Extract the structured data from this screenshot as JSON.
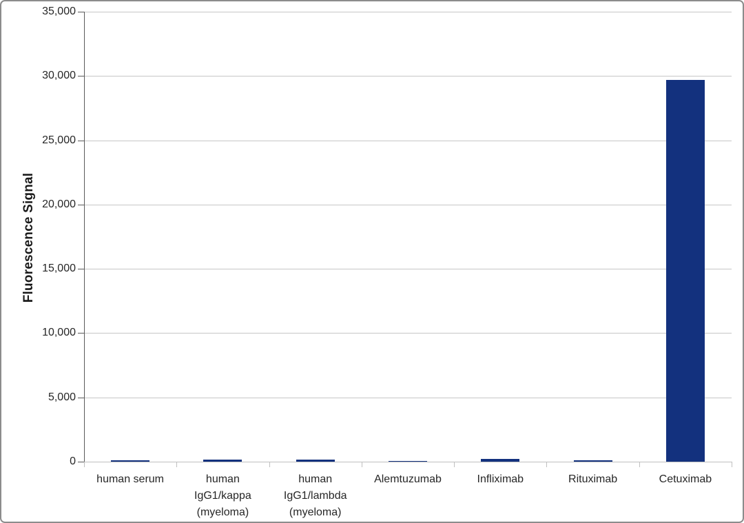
{
  "chart_data": {
    "type": "bar",
    "title": "",
    "xlabel": "",
    "ylabel": "Fluorescence Signal",
    "categories": [
      "human serum",
      "human IgG1/kappa (myeloma)",
      "human IgG1/lambda (myeloma)",
      "Alemtuzumab",
      "Infliximab",
      "Rituximab",
      "Cetuximab"
    ],
    "category_lines": [
      [
        "human serum"
      ],
      [
        "human",
        "IgG1/kappa",
        "(myeloma)"
      ],
      [
        "human",
        "IgG1/lambda",
        "(myeloma)"
      ],
      [
        "Alemtuzumab"
      ],
      [
        "Infliximab"
      ],
      [
        "Rituximab"
      ],
      [
        "Cetuximab"
      ]
    ],
    "values": [
      100,
      170,
      140,
      80,
      200,
      130,
      29700
    ],
    "ylim": [
      0,
      35000
    ],
    "ytick_interval": 5000,
    "yticks": [
      {
        "value": 0,
        "label": "0"
      },
      {
        "value": 5000,
        "label": "5,000"
      },
      {
        "value": 10000,
        "label": "10,000"
      },
      {
        "value": 15000,
        "label": "15,000"
      },
      {
        "value": 20000,
        "label": "20,000"
      },
      {
        "value": 25000,
        "label": "25,000"
      },
      {
        "value": 30000,
        "label": "30,000"
      },
      {
        "value": 35000,
        "label": "35,000"
      }
    ],
    "grid": true,
    "legend_position": "none",
    "colors": {
      "bar": "#13317e",
      "gridline": "#c6c6c6",
      "y_axis": "#595959",
      "x_axis": "#bfbfbf",
      "tick_text": "#262626",
      "axis_title_text": "#1a1a1a",
      "frame_border": "#8c8c8c",
      "background": "#ffffff"
    }
  }
}
